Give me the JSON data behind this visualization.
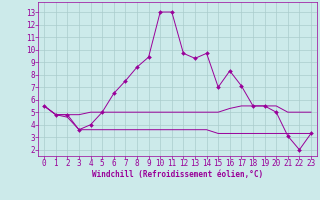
{
  "xlabel": "Windchill (Refroidissement éolien,°C)",
  "background_color": "#cceaea",
  "grid_color": "#aacccc",
  "line_color": "#990099",
  "x_ticks": [
    0,
    1,
    2,
    3,
    4,
    5,
    6,
    7,
    8,
    9,
    10,
    11,
    12,
    13,
    14,
    15,
    16,
    17,
    18,
    19,
    20,
    21,
    22,
    23
  ],
  "y_ticks": [
    2,
    3,
    4,
    5,
    6,
    7,
    8,
    9,
    10,
    11,
    12,
    13
  ],
  "ylim": [
    1.5,
    13.8
  ],
  "xlim": [
    -0.5,
    23.5
  ],
  "series1": {
    "x": [
      0,
      1,
      2,
      3,
      4,
      5,
      6,
      7,
      8,
      9,
      10,
      11,
      12,
      13,
      14,
      15,
      16,
      17,
      18,
      19,
      20,
      21,
      22,
      23
    ],
    "y": [
      5.5,
      4.8,
      4.8,
      3.6,
      4.0,
      5.0,
      6.5,
      7.5,
      8.6,
      9.4,
      13.0,
      13.0,
      9.7,
      9.3,
      9.7,
      7.0,
      8.3,
      7.1,
      5.5,
      5.5,
      5.0,
      3.1,
      2.0,
      3.3
    ]
  },
  "series2": {
    "x": [
      0,
      1,
      2,
      3,
      4,
      5,
      6,
      7,
      8,
      9,
      10,
      11,
      12,
      13,
      14,
      15,
      16,
      17,
      18,
      19,
      20,
      21,
      22,
      23
    ],
    "y": [
      5.5,
      4.8,
      4.8,
      4.8,
      5.0,
      5.0,
      5.0,
      5.0,
      5.0,
      5.0,
      5.0,
      5.0,
      5.0,
      5.0,
      5.0,
      5.0,
      5.3,
      5.5,
      5.5,
      5.5,
      5.5,
      5.0,
      5.0,
      5.0
    ]
  },
  "series3": {
    "x": [
      0,
      1,
      2,
      3,
      4,
      5,
      6,
      7,
      8,
      9,
      10,
      11,
      12,
      13,
      14,
      15,
      16,
      17,
      18,
      19,
      20,
      21,
      22,
      23
    ],
    "y": [
      5.5,
      4.8,
      4.6,
      3.6,
      3.6,
      3.6,
      3.6,
      3.6,
      3.6,
      3.6,
      3.6,
      3.6,
      3.6,
      3.6,
      3.6,
      3.3,
      3.3,
      3.3,
      3.3,
      3.3,
      3.3,
      3.3,
      3.3,
      3.3
    ]
  },
  "tick_fontsize": 5.5,
  "xlabel_fontsize": 5.5
}
